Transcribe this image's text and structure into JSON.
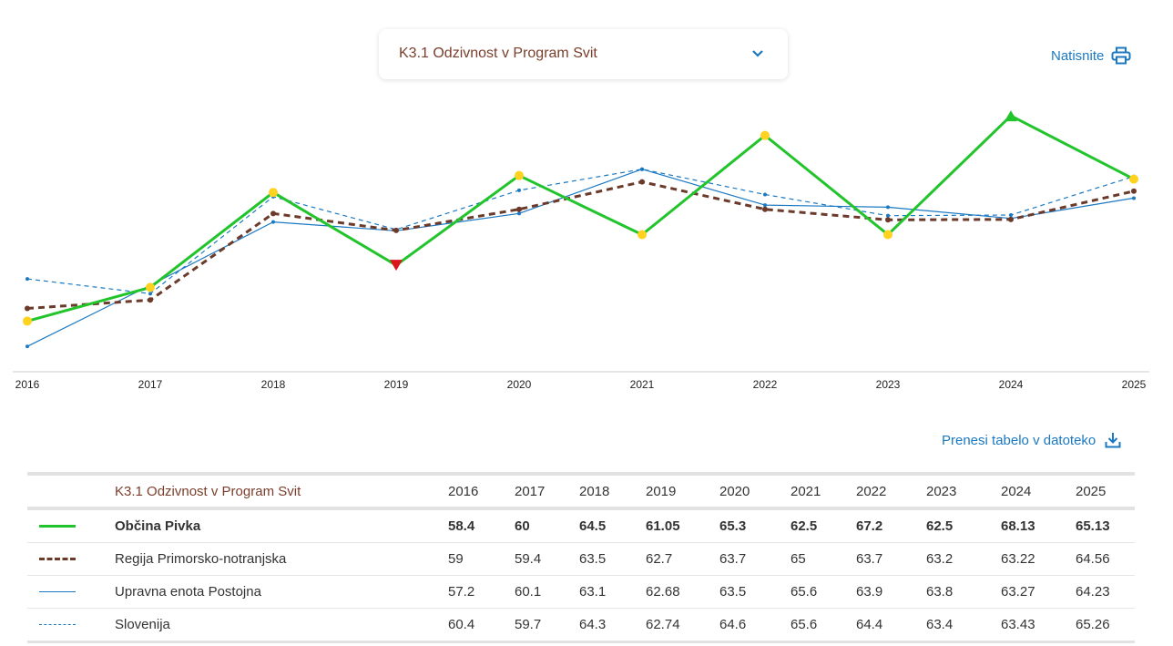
{
  "selector": {
    "label": "K3.1 Odzivnost v Program Svit"
  },
  "actions": {
    "print_label": "Natisnite",
    "download_label": "Prenesi tabelo v datoteko"
  },
  "colors": {
    "accent": "#1b79c2",
    "title": "#7a3e2c"
  },
  "chart_data": {
    "type": "line",
    "x": [
      "2016",
      "2017",
      "2018",
      "2019",
      "2020",
      "2021",
      "2022",
      "2023",
      "2024",
      "2025"
    ],
    "ylim": [
      56.0,
      69.0
    ],
    "grid": false,
    "series": [
      {
        "name": "Občina Pivka",
        "values": [
          58.4,
          60,
          64.5,
          61.05,
          65.3,
          62.5,
          67.2,
          62.5,
          68.13,
          65.13
        ],
        "color": "#22c42c",
        "style": "solid-thick",
        "markers": [
          "dot",
          "dot",
          "dot",
          "down",
          "dot",
          "dot",
          "dot",
          "dot",
          "up",
          "dot"
        ]
      },
      {
        "name": "Regija Primorsko-notranjska",
        "values": [
          59,
          59.4,
          63.5,
          62.7,
          63.7,
          65,
          63.7,
          63.2,
          63.22,
          64.56
        ],
        "color": "#6b3a2a",
        "style": "dashed-thick"
      },
      {
        "name": "Upravna enota Postojna",
        "values": [
          57.2,
          60.1,
          63.1,
          62.68,
          63.5,
          65.6,
          63.9,
          63.8,
          63.27,
          64.23
        ],
        "color": "#1b79c2",
        "style": "solid-thin"
      },
      {
        "name": "Slovenija",
        "values": [
          60.4,
          59.7,
          64.3,
          62.74,
          64.6,
          65.6,
          64.4,
          63.4,
          63.43,
          65.26
        ],
        "color": "#1b79c2",
        "style": "dashed-thin"
      }
    ]
  },
  "table": {
    "title": "K3.1 Odzivnost v Program Svit",
    "years": [
      "2016",
      "2017",
      "2018",
      "2019",
      "2020",
      "2021",
      "2022",
      "2023",
      "2024",
      "2025"
    ],
    "rows": [
      {
        "name": "Občina Pivka",
        "values": [
          "58.4",
          "60",
          "64.5",
          "61.05",
          "65.3",
          "62.5",
          "67.2",
          "62.5",
          "68.13",
          "65.13"
        ]
      },
      {
        "name": "Regija Primorsko-notranjska",
        "values": [
          "59",
          "59.4",
          "63.5",
          "62.7",
          "63.7",
          "65",
          "63.7",
          "63.2",
          "63.22",
          "64.56"
        ]
      },
      {
        "name": "Upravna enota Postojna",
        "values": [
          "57.2",
          "60.1",
          "63.1",
          "62.68",
          "63.5",
          "65.6",
          "63.9",
          "63.8",
          "63.27",
          "64.23"
        ]
      },
      {
        "name": "Slovenija",
        "values": [
          "60.4",
          "59.7",
          "64.3",
          "62.74",
          "64.6",
          "65.6",
          "64.4",
          "63.4",
          "63.43",
          "65.26"
        ]
      }
    ]
  }
}
